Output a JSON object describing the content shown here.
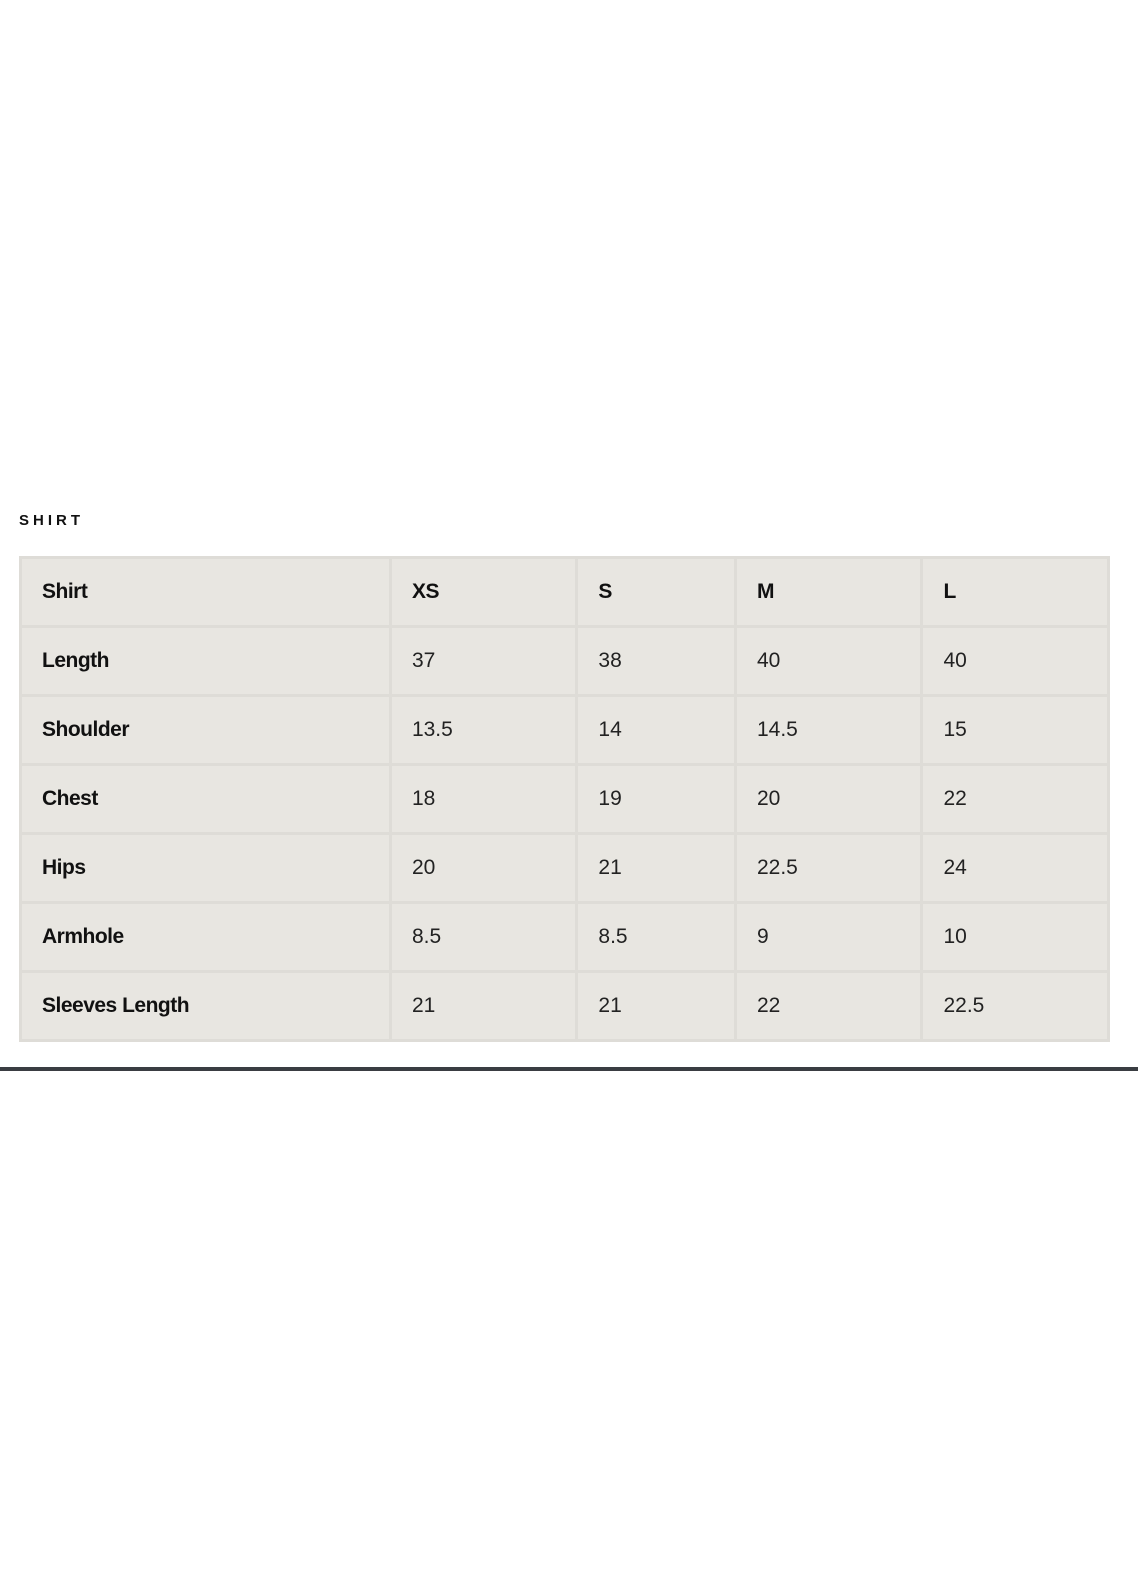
{
  "caption": "SHIRT",
  "table": {
    "header": [
      "Shirt",
      "XS",
      "S",
      "M",
      "L"
    ],
    "rows": [
      [
        "Length",
        "37",
        "38",
        "40",
        "40"
      ],
      [
        "Shoulder",
        "13.5",
        "14",
        "14.5",
        "15"
      ],
      [
        "Chest",
        "18",
        "19",
        "20",
        "22"
      ],
      [
        "Hips",
        "20",
        "21",
        "22.5",
        "24"
      ],
      [
        "Armhole",
        "8.5",
        "8.5",
        "9",
        "10"
      ],
      [
        "Sleeves Length",
        "21",
        "21",
        "22",
        "22.5"
      ]
    ]
  },
  "colors": {
    "cell_background": "#e8e6e1",
    "cell_border": "#dedcd7"
  }
}
